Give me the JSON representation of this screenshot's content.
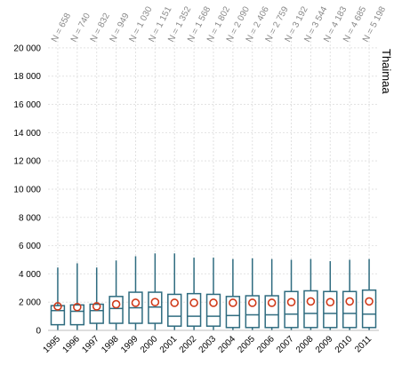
{
  "chart_data": {
    "type": "box",
    "title": "",
    "panel_label": "Thaimaa",
    "xlabel": "",
    "ylabel": "",
    "ylim": [
      0,
      21000
    ],
    "yticks": [
      0,
      2000,
      4000,
      6000,
      8000,
      10000,
      12000,
      14000,
      16000,
      18000,
      20000
    ],
    "ytick_labels": [
      "0",
      "2 000",
      "4 000",
      "6 000",
      "8 000",
      "10 000",
      "12 000",
      "14 000",
      "16 000",
      "18 000",
      "20 000"
    ],
    "grid": true,
    "colors": {
      "box": "#2e6b7f",
      "mean": "#d03a1a",
      "grid": "#e2e2e2"
    },
    "categories": [
      "1995",
      "1996",
      "1997",
      "1998",
      "1999",
      "2000",
      "2001",
      "2002",
      "2003",
      "2004",
      "2005",
      "2006",
      "2007",
      "2008",
      "2009",
      "2010",
      "2011"
    ],
    "n_labels": [
      "N = 658",
      "N = 740",
      "N = 832",
      "N = 949",
      "N = 1 030",
      "N = 1 151",
      "N = 1 352",
      "N = 1 568",
      "N = 1 802",
      "N = 2 090",
      "N = 2 406",
      "N = 2 759",
      "N = 3 192",
      "N = 3 544",
      "N = 4 183",
      "N = 4 685",
      "N = 5 198"
    ],
    "whisker_low": [
      0,
      0,
      0,
      0,
      0,
      0,
      0,
      0,
      0,
      0,
      0,
      0,
      0,
      0,
      0,
      0,
      0
    ],
    "q1": [
      400,
      400,
      500,
      500,
      500,
      500,
      300,
      300,
      300,
      200,
      200,
      200,
      200,
      200,
      200,
      200,
      200
    ],
    "median": [
      1400,
      1350,
      1400,
      1550,
      1600,
      1650,
      1000,
      1000,
      1000,
      1050,
      1100,
      1100,
      1150,
      1200,
      1200,
      1200,
      1150
    ],
    "q3": [
      1750,
      1800,
      1850,
      2400,
      2700,
      2700,
      2550,
      2600,
      2550,
      2400,
      2450,
      2450,
      2750,
      2800,
      2750,
      2750,
      2850
    ],
    "whisker_high": [
      4450,
      4750,
      4450,
      4950,
      5250,
      5450,
      5450,
      5150,
      5150,
      5050,
      5100,
      5050,
      5000,
      5050,
      4900,
      5000,
      5050
    ],
    "means": [
      1700,
      1650,
      1700,
      1850,
      1950,
      2000,
      1950,
      1950,
      1950,
      1950,
      1950,
      1950,
      2000,
      2050,
      2000,
      2050,
      2050
    ]
  }
}
